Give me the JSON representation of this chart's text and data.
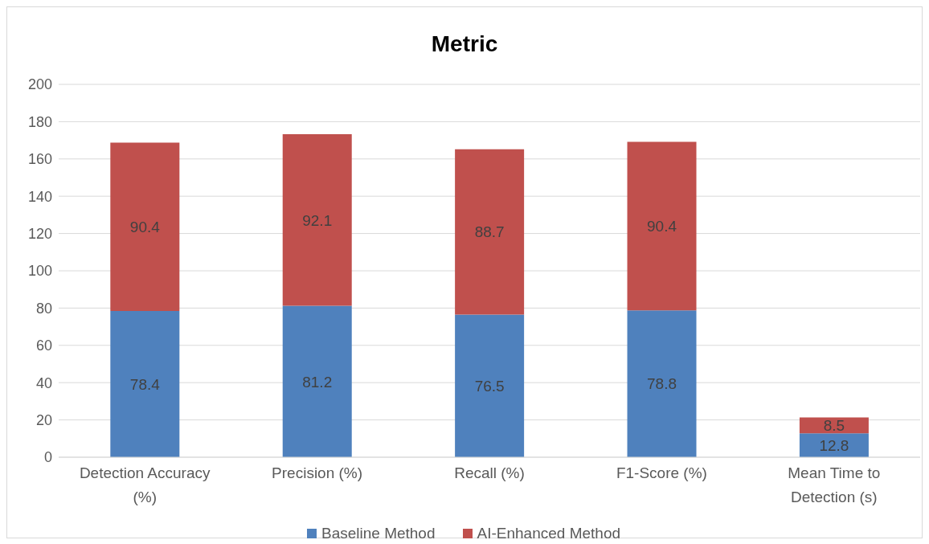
{
  "chart_data": {
    "type": "bar",
    "title": "Metric",
    "categories": [
      "Detection Accuracy (%)",
      "Precision (%)",
      "Recall (%)",
      "F1-Score (%)",
      "Mean Time to Detection (s)"
    ],
    "series": [
      {
        "name": "Baseline Method",
        "color": "#4f81bd",
        "values": [
          78.4,
          81.2,
          76.5,
          78.8,
          12.8
        ]
      },
      {
        "name": "AI-Enhanced Method",
        "color": "#c0504d",
        "values": [
          90.4,
          92.1,
          88.7,
          90.4,
          8.5
        ]
      }
    ],
    "stacked": true,
    "data_labels": true,
    "ylim": [
      0,
      200
    ],
    "yticks": [
      0,
      20,
      40,
      60,
      80,
      100,
      120,
      140,
      160,
      180,
      200
    ],
    "grid": "y",
    "legend": "bottom"
  }
}
